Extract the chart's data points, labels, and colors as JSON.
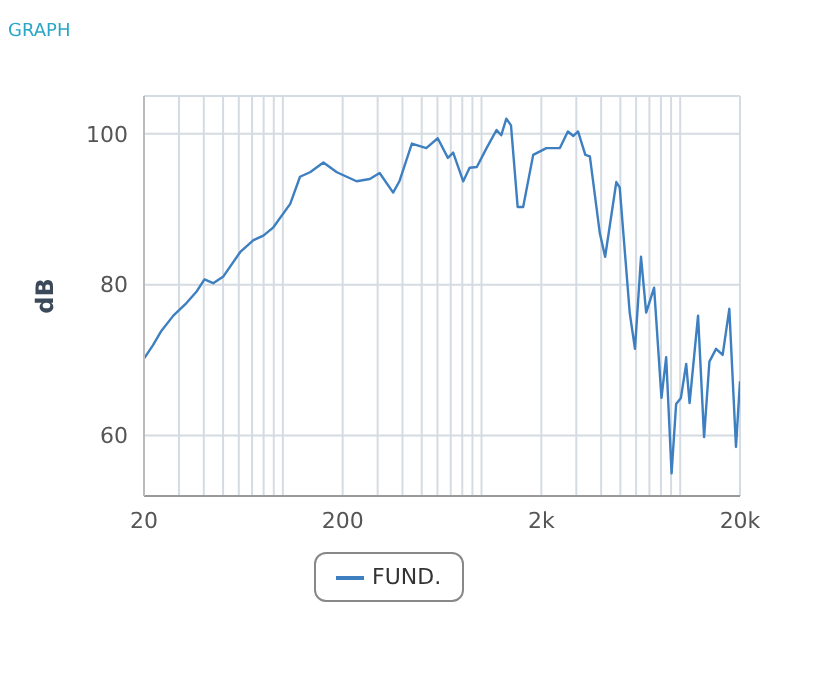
{
  "chart_data": {
    "type": "line",
    "title": "GRAPH",
    "ylabel": "dB",
    "log": "x",
    "x": [
      20,
      22.2,
      24.5,
      28.1,
      32.8,
      36.8,
      40.3,
      44.6,
      50.2,
      60.9,
      71.1,
      79.8,
      89.6,
      108.9,
      122,
      137,
      160,
      187,
      235,
      274,
      307,
      359,
      386,
      446,
      527,
      602,
      677,
      720,
      809,
      871,
      947,
      1060,
      1190,
      1257,
      1333,
      1407,
      1520,
      1620,
      1820,
      2120,
      2480,
      2720,
      2900,
      3060,
      3330,
      3510,
      3940,
      4190,
      4770,
      4960,
      5570,
      5920,
      6350,
      6740,
      7390,
      8050,
      8500,
      9050,
      9540,
      10080,
      10720,
      11150,
      12300,
      13190,
      14030,
      15150,
      16360,
      17670,
      19090,
      20000
    ],
    "series": [
      {
        "name": "FUND.",
        "color": "#3d7fc0",
        "values": [
          70.2,
          72.0,
          73.9,
          75.9,
          77.6,
          79.1,
          80.7,
          80.2,
          81.1,
          84.3,
          85.9,
          86.5,
          87.6,
          90.7,
          94.3,
          94.9,
          96.2,
          94.9,
          93.7,
          94.0,
          94.8,
          92.2,
          93.7,
          98.7,
          98.1,
          99.4,
          96.8,
          97.5,
          93.7,
          95.5,
          95.6,
          98.1,
          100.5,
          99.8,
          102.0,
          101.1,
          90.3,
          90.3,
          97.2,
          98.1,
          98.1,
          100.3,
          99.7,
          100.3,
          97.2,
          97.0,
          86.8,
          83.7,
          93.6,
          92.9,
          76.3,
          71.5,
          83.7,
          76.3,
          79.6,
          65.0,
          70.4,
          55.0,
          64.2,
          65.0,
          69.5,
          64.3,
          75.9,
          59.8,
          69.8,
          71.5,
          70.7,
          76.8,
          58.5,
          67.2
        ]
      }
    ],
    "xlim": [
      20,
      20000
    ],
    "xticks": [
      20,
      {
        "value": 30,
        "label": null
      },
      {
        "value": 40,
        "label": null
      },
      {
        "value": 50,
        "label": null
      },
      {
        "value": 60,
        "label": null
      },
      {
        "value": 70,
        "label": null
      },
      {
        "value": 80,
        "label": null
      },
      {
        "value": 90,
        "label": null
      },
      {
        "value": 100,
        "label": null
      },
      200,
      {
        "value": 300,
        "label": null
      },
      {
        "value": 400,
        "label": null
      },
      {
        "value": 500,
        "label": null
      },
      {
        "value": 600,
        "label": null
      },
      {
        "value": 700,
        "label": null
      },
      {
        "value": 800,
        "label": null
      },
      {
        "value": 900,
        "label": null
      },
      {
        "value": 1000,
        "label": null
      },
      {
        "value": 2000,
        "label": "2k"
      },
      {
        "value": 3000,
        "label": null
      },
      {
        "value": 4000,
        "label": null
      },
      {
        "value": 5000,
        "label": null
      },
      {
        "value": 6000,
        "label": null
      },
      {
        "value": 7000,
        "label": null
      },
      {
        "value": 8000,
        "label": null
      },
      {
        "value": 9000,
        "label": null
      },
      {
        "value": 10000,
        "label": null
      },
      {
        "value": 20000,
        "label": "20k"
      }
    ],
    "ylim": [
      52,
      105
    ],
    "yticks": [
      60,
      80,
      100
    ],
    "grid": true,
    "legend": "bottom",
    "marker": "none",
    "line_style": "solid"
  }
}
